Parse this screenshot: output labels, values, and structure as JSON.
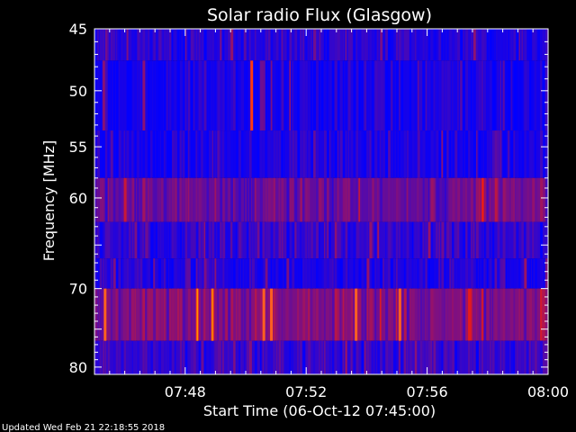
{
  "chart_data": {
    "type": "heatmap",
    "title": "Solar radio Flux (Glasgow)",
    "xlabel": "Start Time (06-Oct-12 07:45:00)",
    "ylabel": "Frequency [MHz]",
    "x_range_minutes": [
      0,
      15
    ],
    "x_ticks": [
      {
        "label": "07:48",
        "minute": 3
      },
      {
        "label": "07:52",
        "minute": 7
      },
      {
        "label": "07:56",
        "minute": 11
      },
      {
        "label": "08:00",
        "minute": 15
      }
    ],
    "y_range_mhz": [
      45,
      81
    ],
    "y_ticks": [
      45,
      50,
      55,
      60,
      70,
      80
    ],
    "y_ticks_unlabeled": [
      65,
      75
    ],
    "y_scale": "log",
    "color_low": "#0000ff",
    "color_high": "#ff2000",
    "bands": [
      {
        "from_mhz": 45,
        "to_mhz": 47.5,
        "base_level": 0.12
      },
      {
        "from_mhz": 47.5,
        "to_mhz": 53.5,
        "base_level": 0.08
      },
      {
        "from_mhz": 53.5,
        "to_mhz": 58,
        "base_level": 0.1
      },
      {
        "from_mhz": 58,
        "to_mhz": 62.5,
        "base_level": 0.4
      },
      {
        "from_mhz": 62.5,
        "to_mhz": 66.5,
        "base_level": 0.18
      },
      {
        "from_mhz": 66.5,
        "to_mhz": 70,
        "base_level": 0.12
      },
      {
        "from_mhz": 70,
        "to_mhz": 76.5,
        "base_level": 0.5
      },
      {
        "from_mhz": 76.5,
        "to_mhz": 81,
        "base_level": 0.2
      }
    ],
    "bursts": [
      {
        "minute": 0.35,
        "from_mhz": 70,
        "to_mhz": 76.5,
        "level": 0.9
      },
      {
        "minute": 3.4,
        "from_mhz": 70,
        "to_mhz": 76.5,
        "level": 1.0
      },
      {
        "minute": 3.9,
        "from_mhz": 70,
        "to_mhz": 76.5,
        "level": 1.0
      },
      {
        "minute": 5.2,
        "from_mhz": 47.5,
        "to_mhz": 53.5,
        "level": 1.0
      },
      {
        "minute": 5.6,
        "from_mhz": 70,
        "to_mhz": 76.5,
        "level": 0.9
      },
      {
        "minute": 5.85,
        "from_mhz": 70,
        "to_mhz": 76.5,
        "level": 0.85
      },
      {
        "minute": 8.65,
        "from_mhz": 70,
        "to_mhz": 76.5,
        "level": 0.95
      },
      {
        "minute": 10.1,
        "from_mhz": 70,
        "to_mhz": 76.5,
        "level": 0.95
      }
    ]
  },
  "footer": {
    "updated": "Updated Wed Feb 21 22:18:55 2018"
  }
}
